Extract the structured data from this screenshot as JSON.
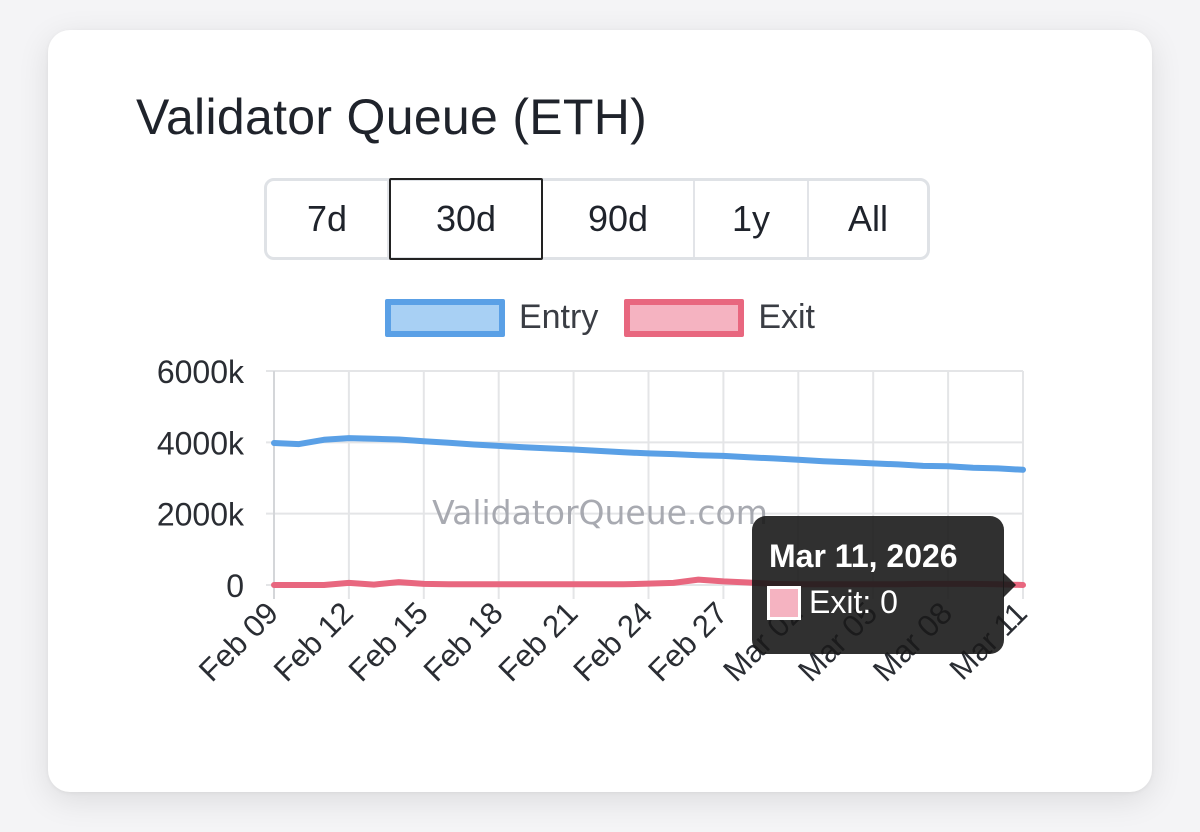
{
  "title": "Validator Queue (ETH)",
  "ranges": [
    {
      "label": "7d",
      "active": false
    },
    {
      "label": "30d",
      "active": true
    },
    {
      "label": "90d",
      "active": false
    },
    {
      "label": "1y",
      "active": false
    },
    {
      "label": "All",
      "active": false
    }
  ],
  "watermark": "ValidatorQueue.com",
  "tooltip": {
    "title": "Mar 11, 2026",
    "label": "Exit: 0"
  },
  "colors": {
    "entry_line": "#5aa0e6",
    "entry_fill": "#a8d0f4",
    "exit_line": "#e8677f",
    "exit_fill": "#f5b3c1"
  },
  "chart_data": {
    "type": "line",
    "y_tick_labels": [
      "6000k",
      "4000k",
      "2000k",
      "0"
    ],
    "y_ticks": [
      6000,
      4000,
      2000,
      0
    ],
    "ylim": [
      0,
      6000
    ],
    "y_unit": "k",
    "x": [
      "Feb 09",
      "Feb 10",
      "Feb 11",
      "Feb 12",
      "Feb 13",
      "Feb 14",
      "Feb 15",
      "Feb 16",
      "Feb 17",
      "Feb 18",
      "Feb 19",
      "Feb 20",
      "Feb 21",
      "Feb 22",
      "Feb 23",
      "Feb 24",
      "Feb 25",
      "Feb 26",
      "Feb 27",
      "Feb 28",
      "Mar 01",
      "Mar 02",
      "Mar 03",
      "Mar 04",
      "Mar 05",
      "Mar 06",
      "Mar 07",
      "Mar 08",
      "Mar 09",
      "Mar 10",
      "Mar 11"
    ],
    "x_tick_labels": [
      "Feb 09",
      "Feb 12",
      "Feb 15",
      "Feb 18",
      "Feb 21",
      "Feb 24",
      "Feb 27",
      "Mar 02",
      "Mar 05",
      "Mar 08",
      "Mar 11"
    ],
    "series": [
      {
        "name": "Entry",
        "values": [
          3980,
          3950,
          4070,
          4120,
          4100,
          4080,
          4030,
          3990,
          3940,
          3900,
          3860,
          3830,
          3800,
          3760,
          3720,
          3690,
          3670,
          3640,
          3620,
          3580,
          3550,
          3510,
          3470,
          3440,
          3410,
          3380,
          3340,
          3330,
          3290,
          3270,
          3230
        ]
      },
      {
        "name": "Exit",
        "values": [
          0,
          0,
          0,
          60,
          10,
          80,
          30,
          20,
          20,
          20,
          20,
          20,
          20,
          20,
          20,
          40,
          60,
          150,
          100,
          70,
          30,
          20,
          20,
          20,
          20,
          20,
          30,
          30,
          30,
          20,
          0
        ]
      }
    ],
    "legend": "top-center",
    "grid": true
  }
}
